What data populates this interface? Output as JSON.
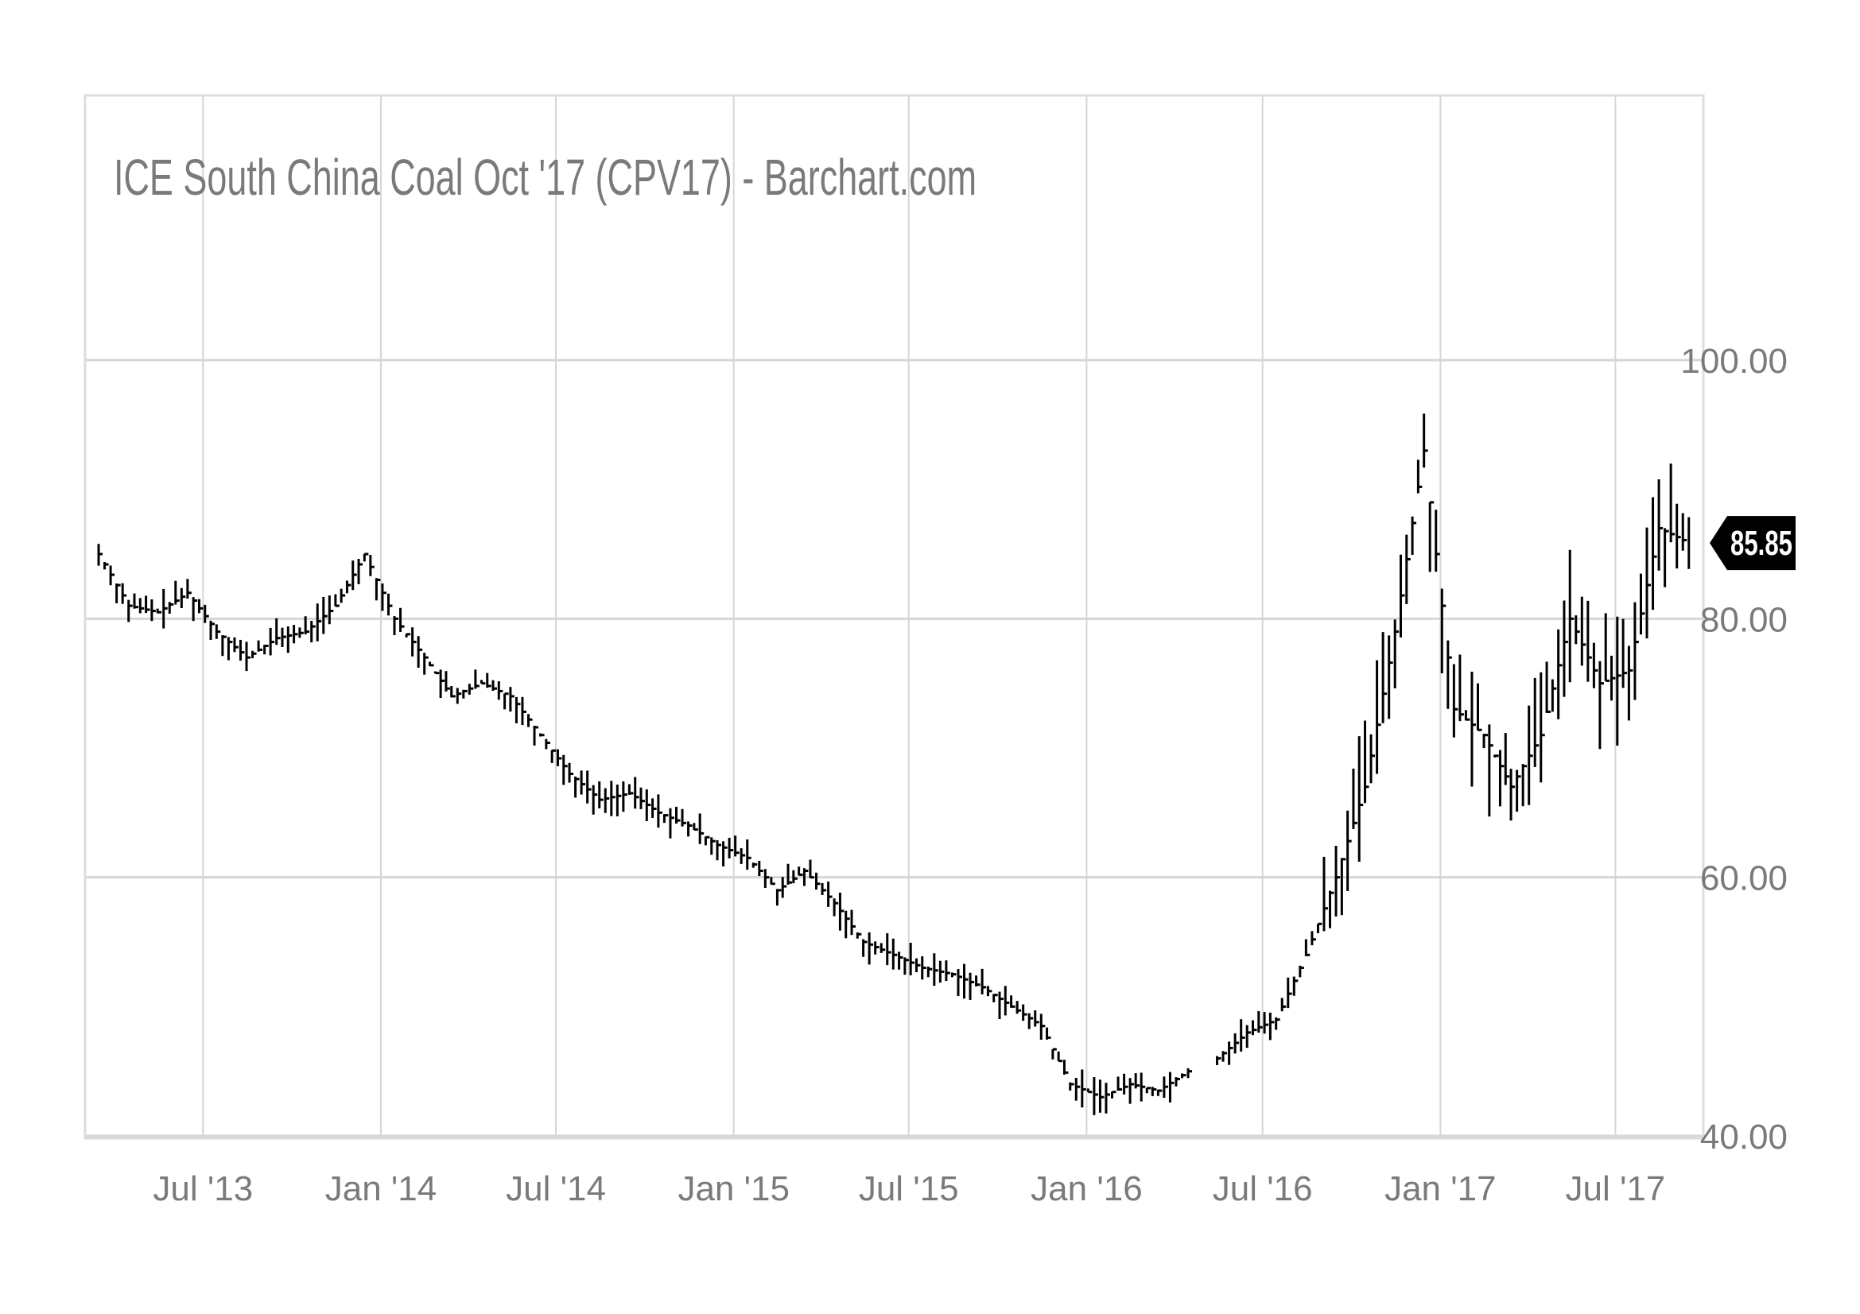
{
  "chart_data": {
    "type": "line",
    "style": "ohlc-bars",
    "title": "ICE South China Coal Oct '17 (CPV17) - Barchart.com",
    "x_ticks": [
      "Jul '13",
      "Jan '14",
      "Jul '14",
      "Jan '15",
      "Jul '15",
      "Jan '16",
      "Jul '16",
      "Jan '17",
      "Jul '17"
    ],
    "y_ticks": [
      "100.00",
      "80.00",
      "60.00",
      "40.00"
    ],
    "ylim": [
      40,
      100
    ],
    "xlim": [
      "2013-03-01",
      "2017-09-30"
    ],
    "last_price": "85.85",
    "grid": true,
    "legend": "none",
    "colors": {
      "bars": "#000000",
      "grid": "#d6d6d6",
      "text": "#7a7a7a",
      "tag_bg": "#000000",
      "tag_text": "#ffffff"
    },
    "series": [
      {
        "x": [
          "2013-03",
          "2013-04",
          "2013-05",
          "2013-06",
          "2013-07",
          "2013-08",
          "2013-09",
          "2013-10",
          "2013-11",
          "2013-12",
          "2014-01",
          "2014-02",
          "2014-03",
          "2014-04",
          "2014-05",
          "2014-06",
          "2014-07",
          "2014-08",
          "2014-09",
          "2014-10",
          "2014-11",
          "2014-12",
          "2015-01",
          "2015-02",
          "2015-03",
          "2015-04",
          "2015-05",
          "2015-06",
          "2015-07",
          "2015-08",
          "2015-09",
          "2015-10",
          "2015-11",
          "2015-12",
          "2016-01",
          "2016-02",
          "2016-03",
          "2016-04",
          "2016-05",
          "2016-06",
          "2016-07",
          "2016-08",
          "2016-09",
          "2016-10",
          "2016-11",
          "2016-12",
          "2017-01",
          "2017-02",
          "2017-03",
          "2017-04",
          "2017-05",
          "2017-06",
          "2017-07",
          "2017-08",
          "2017-09"
        ],
        "values": [
          85,
          81,
          80.5,
          82,
          79,
          77,
          78.5,
          79,
          81,
          85,
          80,
          77,
          74,
          75,
          74,
          71,
          68,
          66,
          66.5,
          65,
          64,
          62.5,
          61.5,
          59,
          60.5,
          58,
          55,
          54,
          53,
          52.5,
          51.5,
          50,
          48.5,
          44,
          43,
          44,
          43.5,
          45,
          46,
          48,
          49,
          54,
          60,
          67,
          79,
          93,
          73,
          71,
          67,
          71,
          80,
          75,
          76,
          87,
          85.85
        ]
      }
    ]
  }
}
